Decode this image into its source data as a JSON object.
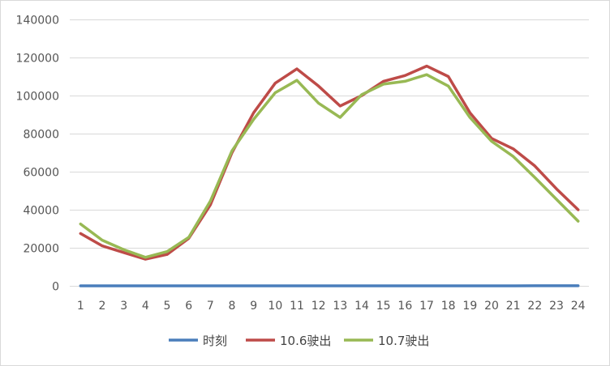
{
  "chart_data": {
    "type": "line",
    "title": "",
    "xlabel": "",
    "ylabel": "",
    "x": [
      1,
      2,
      3,
      4,
      5,
      6,
      7,
      8,
      9,
      10,
      11,
      12,
      13,
      14,
      15,
      16,
      17,
      18,
      19,
      20,
      21,
      22,
      23,
      24
    ],
    "x_tick_labels": [
      "1",
      "2",
      "3",
      "4",
      "5",
      "6",
      "7",
      "8",
      "9",
      "10",
      "11",
      "12",
      "13",
      "14",
      "15",
      "16",
      "17",
      "18",
      "19",
      "20",
      "21",
      "22",
      "23",
      "24"
    ],
    "ylim": [
      0,
      140000
    ],
    "y_ticks": [
      0,
      20000,
      40000,
      60000,
      80000,
      100000,
      120000,
      140000
    ],
    "y_tick_labels": [
      "0",
      "20000",
      "40000",
      "60000",
      "80000",
      "100000",
      "120000",
      "140000"
    ],
    "grid": true,
    "legend_position": "bottom",
    "series": [
      {
        "name": "时刻",
        "color": "#4a7ebb",
        "values": [
          1,
          2,
          3,
          4,
          5,
          6,
          7,
          8,
          9,
          10,
          11,
          12,
          13,
          14,
          15,
          16,
          17,
          18,
          19,
          20,
          21,
          22,
          23,
          24
        ]
      },
      {
        "name": "10.6驶出",
        "color": "#be4b48",
        "values": [
          27500,
          21000,
          17500,
          14000,
          16500,
          25000,
          42500,
          70000,
          91000,
          106500,
          114000,
          105000,
          94500,
          100000,
          107500,
          110500,
          115500,
          110000,
          91000,
          77500,
          72000,
          63000,
          51000,
          40000
        ]
      },
      {
        "name": "10.7驶出",
        "color": "#98b954",
        "values": [
          32500,
          24000,
          19000,
          15000,
          18000,
          25500,
          44500,
          71000,
          87500,
          101500,
          108000,
          96000,
          88500,
          100500,
          106000,
          107500,
          111000,
          105000,
          88500,
          76000,
          68000,
          57000,
          45500,
          34000
        ]
      }
    ]
  }
}
